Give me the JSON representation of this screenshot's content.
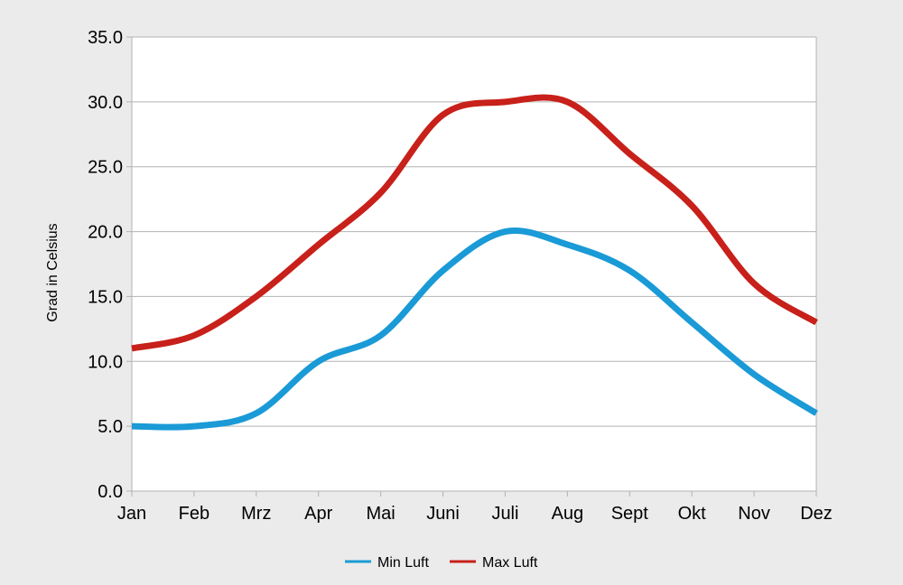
{
  "chart_data": {
    "type": "line",
    "title": "",
    "xlabel": "",
    "ylabel": "Grad in Celsius",
    "ylim": [
      0,
      35
    ],
    "yticks": [
      "0.0",
      "5.0",
      "10.0",
      "15.0",
      "20.0",
      "25.0",
      "30.0",
      "35.0"
    ],
    "categories": [
      "Jan",
      "Feb",
      "Mrz",
      "Apr",
      "Mai",
      "Juni",
      "Juli",
      "Aug",
      "Sept",
      "Okt",
      "Nov",
      "Dez"
    ],
    "smooth": true,
    "grid": "horizontal",
    "legend_position": "bottom",
    "series": [
      {
        "name": "Min Luft",
        "color": "#1a9ad6",
        "values": [
          5,
          5,
          6,
          10,
          12,
          17,
          20,
          19,
          17,
          13,
          9,
          6
        ]
      },
      {
        "name": "Max Luft",
        "color": "#c8201a",
        "values": [
          11,
          12,
          15,
          19,
          23,
          29,
          30,
          30,
          26,
          22,
          16,
          13
        ]
      }
    ]
  }
}
